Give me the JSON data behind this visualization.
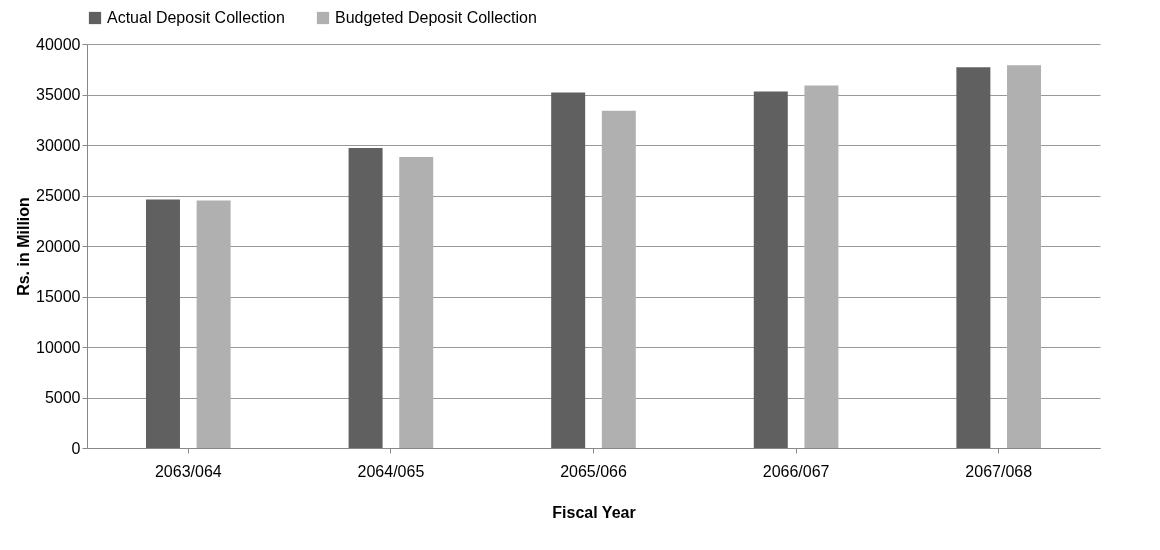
{
  "chart_data": {
    "type": "bar",
    "xlabel": "Fiscal Year",
    "ylabel": "Rs. in Million",
    "categories": [
      "2063/064",
      "2064/065",
      "2065/066",
      "2066/067",
      "2067/068"
    ],
    "series": [
      {
        "name": "Actual Deposit Collection",
        "color": "#606060",
        "values": [
          24600,
          29700,
          35200,
          35300,
          37700
        ]
      },
      {
        "name": "Budgeted Deposit Collection",
        "color": "#b0b0b0",
        "values": [
          24500,
          28800,
          33400,
          35900,
          37900
        ]
      }
    ],
    "ylim": [
      0,
      40000
    ],
    "yticks": [
      0,
      5000,
      10000,
      15000,
      20000,
      25000,
      30000,
      35000,
      40000
    ],
    "grid": "y",
    "legend": "top"
  }
}
